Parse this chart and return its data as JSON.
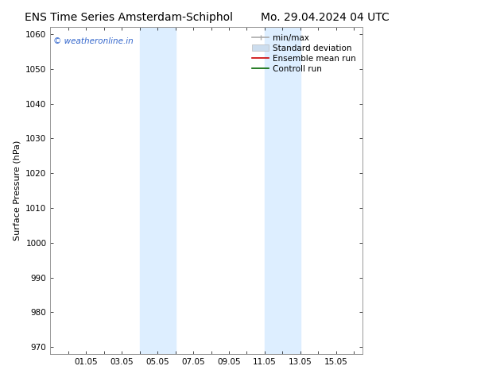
{
  "title_left": "ENS Time Series Amsterdam-Schiphol",
  "title_right": "Mo. 29.04.2024 04 UTC",
  "ylabel": "Surface Pressure (hPa)",
  "ylim": [
    968,
    1062
  ],
  "yticks": [
    970,
    980,
    990,
    1000,
    1010,
    1020,
    1030,
    1040,
    1050,
    1060
  ],
  "xlim_left": -1.0,
  "xlim_right": 16.5,
  "xtick_labels": [
    "01.05",
    "03.05",
    "05.05",
    "07.05",
    "09.05",
    "11.05",
    "13.05",
    "15.05"
  ],
  "xtick_positions": [
    1,
    3,
    5,
    7,
    9,
    11,
    13,
    15
  ],
  "shaded_bands": [
    {
      "x_start": 4.0,
      "x_end": 6.0
    },
    {
      "x_start": 11.0,
      "x_end": 13.0
    }
  ],
  "shade_color": "#ddeeff",
  "watermark_text": "© weatheronline.in",
  "watermark_color": "#3366cc",
  "legend_entries": [
    {
      "label": "min/max",
      "color": "#aaaaaa",
      "lw": 1.2,
      "style": "line_with_cap"
    },
    {
      "label": "Standard deviation",
      "color": "#ccddee",
      "lw": 8,
      "style": "thick"
    },
    {
      "label": "Ensemble mean run",
      "color": "#cc0000",
      "lw": 1.2,
      "style": "line"
    },
    {
      "label": "Controll run",
      "color": "#006600",
      "lw": 1.2,
      "style": "line"
    }
  ],
  "background_color": "#ffffff",
  "grid_color": "#dddddd",
  "title_fontsize": 10,
  "axis_label_fontsize": 8,
  "tick_fontsize": 7.5,
  "legend_fontsize": 7.5
}
